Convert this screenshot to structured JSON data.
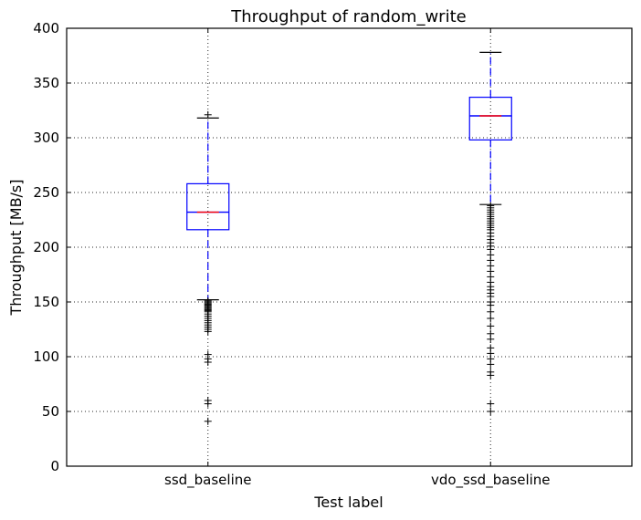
{
  "chart_data": {
    "type": "box",
    "title": "Throughput of random_write",
    "xlabel": "Test label",
    "ylabel": "Throughput [MB/s]",
    "ylim": [
      0,
      400
    ],
    "yticks": [
      0,
      50,
      100,
      150,
      200,
      250,
      300,
      350,
      400
    ],
    "categories": [
      "ssd_baseline",
      "vdo_ssd_baseline"
    ],
    "grid": true,
    "colors": {
      "box": "#0000ff",
      "median": "#ff0000",
      "whisker": "#0000ff",
      "cap": "#000000",
      "flier": "#000000"
    },
    "boxes": [
      {
        "label": "ssd_baseline",
        "whisker_low": 152,
        "q1": 216,
        "median": 232,
        "q3": 258,
        "whisker_high": 318,
        "fliers": [
          151,
          150,
          149,
          148,
          147,
          146,
          145,
          144,
          143,
          142,
          141,
          139,
          137,
          135,
          133,
          131,
          129,
          127,
          125,
          123,
          102,
          98,
          95,
          60,
          57,
          41,
          321
        ]
      },
      {
        "label": "vdo_ssd_baseline",
        "whisker_low": 239,
        "q1": 298,
        "median": 320,
        "q3": 337,
        "whisker_high": 378,
        "fliers": [
          238,
          236,
          234,
          232,
          230,
          228,
          226,
          224,
          222,
          220,
          218,
          216,
          213,
          210,
          207,
          204,
          201,
          198,
          193,
          188,
          183,
          178,
          173,
          168,
          164,
          161,
          158,
          155,
          150,
          147,
          141,
          135,
          128,
          121,
          116,
          108,
          103,
          98,
          93,
          86,
          83,
          57,
          50
        ]
      }
    ]
  }
}
